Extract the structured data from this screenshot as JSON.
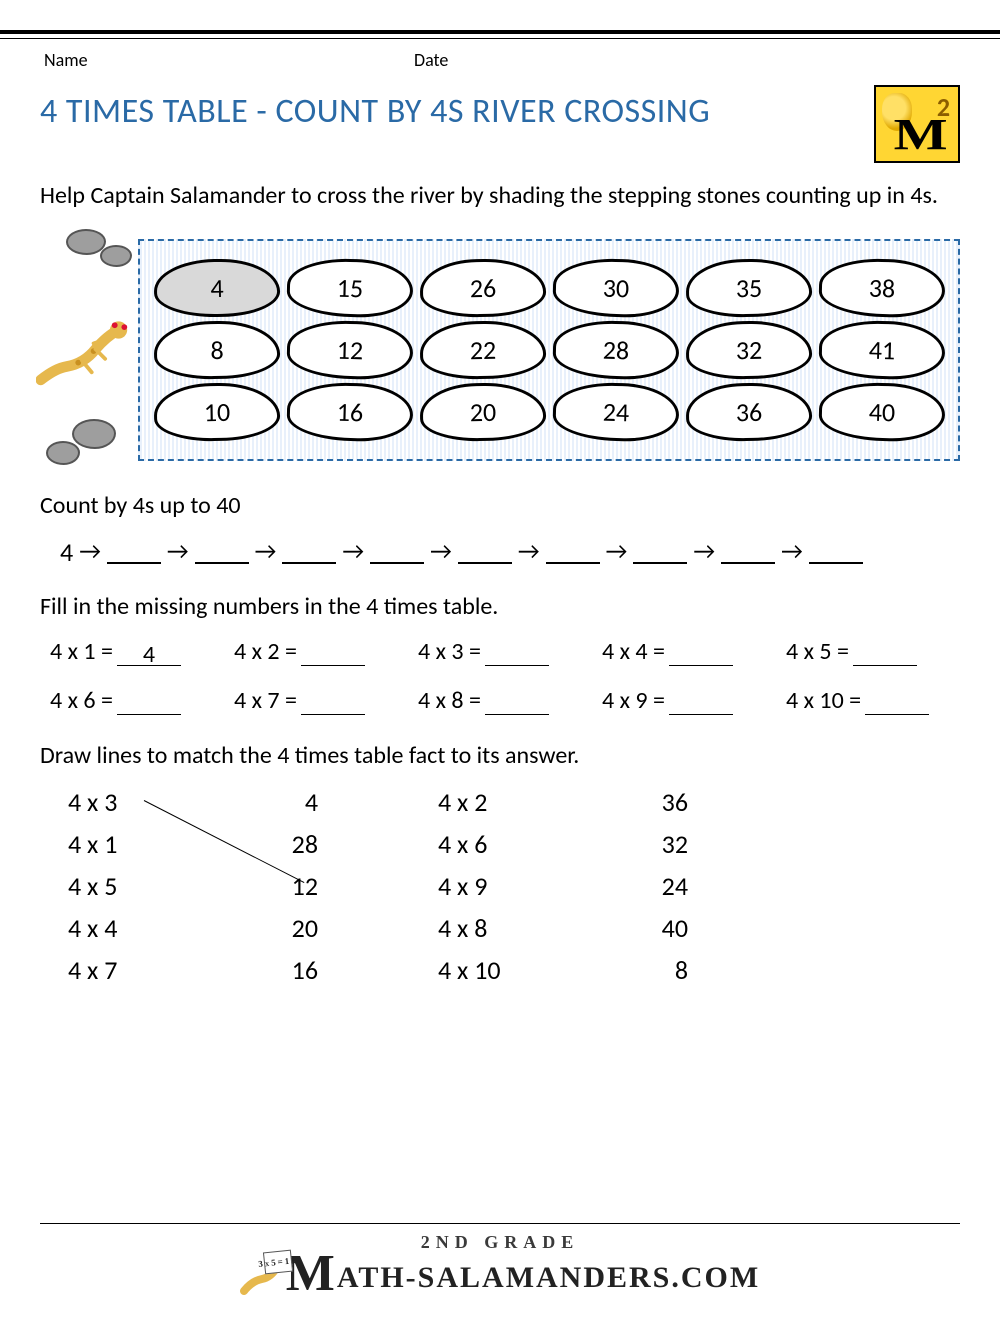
{
  "header": {
    "name_label": "Name",
    "date_label": "Date"
  },
  "badge": {
    "number": "2"
  },
  "title": "4 TIMES TABLE - COUNT BY 4S RIVER CROSSING",
  "instructions": "Help Captain Salamander to cross the river by shading the stepping stones counting up in 4s.",
  "river": {
    "rows": [
      [
        "4",
        "15",
        "26",
        "30",
        "35",
        "38"
      ],
      [
        "8",
        "12",
        "22",
        "28",
        "32",
        "41"
      ],
      [
        "10",
        "16",
        "20",
        "24",
        "36",
        "40"
      ]
    ],
    "first_shaded": true,
    "border_color": "#2a6aa6",
    "water_pattern_color": "#dbe9f8",
    "stone_fill": "#ffffff",
    "stone_border": "#000000",
    "shaded_fill": "#d9d9d9"
  },
  "count_section": {
    "label": "Count by 4s up to 40",
    "start": "4",
    "blanks": 9,
    "arrow": "→"
  },
  "fill_section": {
    "label": "Fill in the missing numbers in the 4 times table.",
    "rows": [
      [
        {
          "q": "4 x 1 =",
          "a": "4"
        },
        {
          "q": "4 x 2 =",
          "a": ""
        },
        {
          "q": "4 x 3 =",
          "a": ""
        },
        {
          "q": "4 x 4 =",
          "a": ""
        },
        {
          "q": "4 x 5 =",
          "a": ""
        }
      ],
      [
        {
          "q": "4 x 6 =",
          "a": ""
        },
        {
          "q": "4 x 7 =",
          "a": ""
        },
        {
          "q": "4 x 8 =",
          "a": ""
        },
        {
          "q": "4 x 9 =",
          "a": ""
        },
        {
          "q": "4 x 10 =",
          "a": ""
        }
      ]
    ]
  },
  "match_section": {
    "label": "Draw lines to match the 4 times table fact to its answer.",
    "left": {
      "q": [
        "4 x 3",
        "4 x 1",
        "4 x 5",
        "4 x 4",
        "4 x 7"
      ],
      "a": [
        "4",
        "28",
        "12",
        "20",
        "16"
      ]
    },
    "right": {
      "q": [
        "4 x 2",
        "4 x 6",
        "4 x 9",
        "4 x 8",
        "4 x 10"
      ],
      "a": [
        "36",
        "32",
        "24",
        "40",
        "8"
      ]
    },
    "example_line": {
      "from_row": 0,
      "to_row": 2,
      "side": "left"
    }
  },
  "footer": {
    "grade": "2ND GRADE",
    "brand_rest": "ATH-SALAMANDERS.COM",
    "card": "3x5=15"
  },
  "colors": {
    "title": "#2a6aa6",
    "text": "#000000",
    "badge_bg": "#ffd633",
    "rock": "#9e9e9e"
  }
}
